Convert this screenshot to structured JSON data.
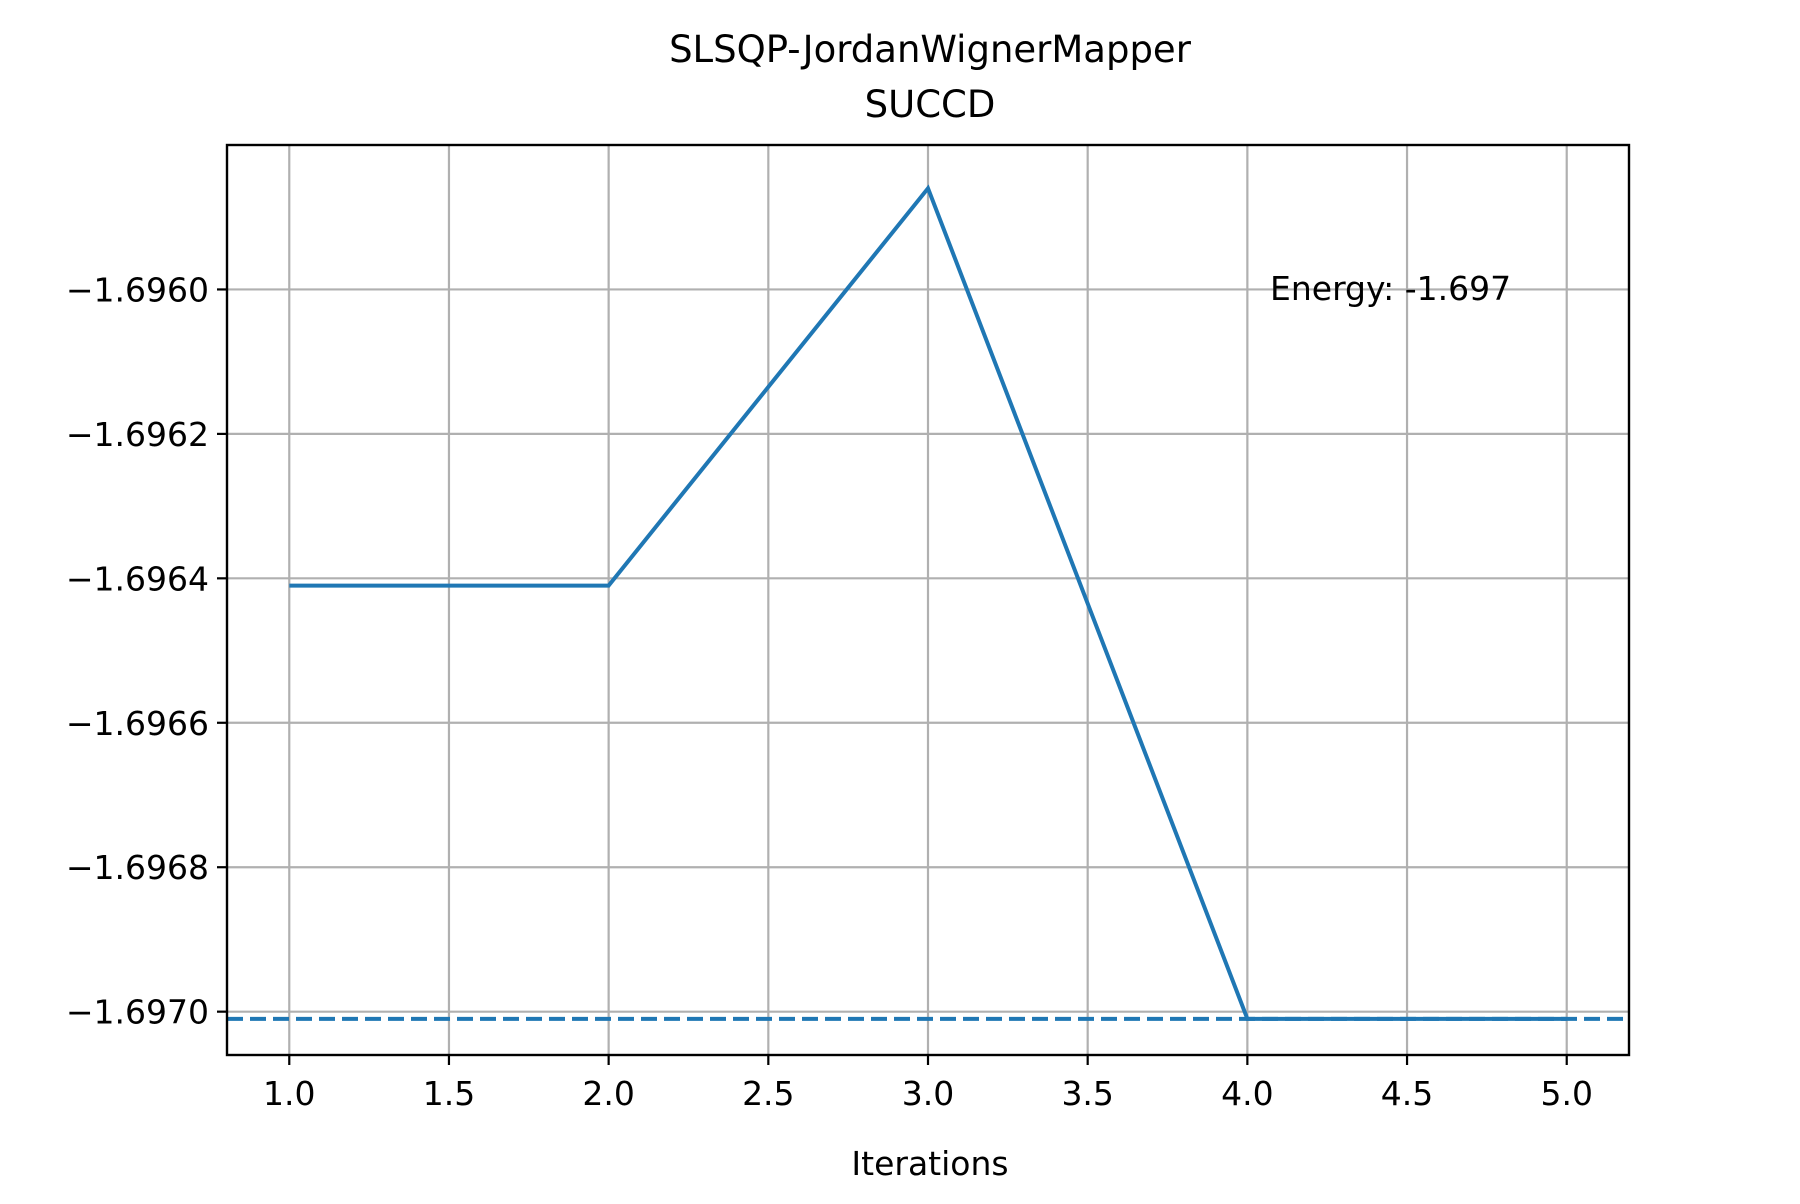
{
  "chart_data": {
    "type": "line",
    "title_line1": "SLSQP-JordanWignerMapper",
    "title_line2": "SUCCD",
    "xlabel": "Iterations",
    "ylabel": "",
    "x": [
      1,
      2,
      3,
      4,
      5
    ],
    "series": [
      {
        "values": [
          -1.69641,
          -1.69641,
          -1.69586,
          -1.69701,
          -1.69701
        ],
        "color": "#1f77b4",
        "style": "solid"
      }
    ],
    "reference_line": {
      "value": -1.69701,
      "color": "#1f77b4",
      "style": "dashed"
    },
    "annotation": "Energy: -1.697",
    "annotation_position": "top-right",
    "xlim": [
      0.805,
      5.195
    ],
    "ylim": [
      -1.69706,
      -1.6958
    ],
    "xticks": [
      1.0,
      1.5,
      2.0,
      2.5,
      3.0,
      3.5,
      4.0,
      4.5,
      5.0
    ],
    "xtick_labels": [
      "1.0",
      "1.5",
      "2.0",
      "2.5",
      "3.0",
      "3.5",
      "4.0",
      "4.5",
      "5.0"
    ],
    "yticks": [
      -1.696,
      -1.6962,
      -1.6964,
      -1.6966,
      -1.6968,
      -1.697
    ],
    "ytick_labels": [
      "−1.6960",
      "−1.6962",
      "−1.6964",
      "−1.6966",
      "−1.6968",
      "−1.6970"
    ],
    "grid": true,
    "grid_color": "#b0b0b0",
    "axes_color": "#000000"
  }
}
